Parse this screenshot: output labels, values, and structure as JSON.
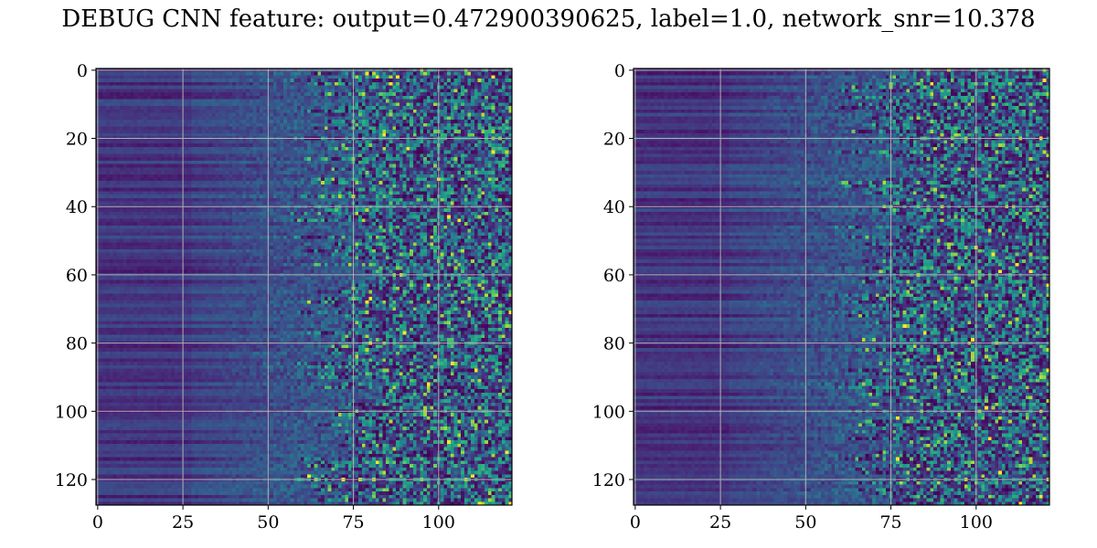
{
  "figure": {
    "title": "DEBUG CNN feature: output=0.472900390625, label=1.0, network_snr=10.378"
  },
  "chart_data": [
    {
      "type": "heatmap",
      "colormap": "viridis",
      "rows": 128,
      "cols": 122,
      "xlim": [
        -0.5,
        121.5
      ],
      "ylim": [
        127.5,
        -0.5
      ],
      "x_ticks": [
        0,
        25,
        50,
        75,
        100
      ],
      "x_tick_labels": [
        "0",
        "25",
        "50",
        "75",
        "100"
      ],
      "y_ticks": [
        0,
        20,
        40,
        60,
        80,
        100,
        120
      ],
      "y_tick_labels": [
        "0",
        "20",
        "40",
        "60",
        "80",
        "100",
        "120"
      ],
      "grid": true,
      "grid_color": "#b0b0b0",
      "noise_onset_col": 70,
      "seed": 7
    },
    {
      "type": "heatmap",
      "colormap": "viridis",
      "rows": 128,
      "cols": 122,
      "xlim": [
        -0.5,
        121.5
      ],
      "ylim": [
        127.5,
        -0.5
      ],
      "x_ticks": [
        0,
        25,
        50,
        75,
        100
      ],
      "x_tick_labels": [
        "0",
        "25",
        "50",
        "75",
        "100"
      ],
      "y_ticks": [
        0,
        20,
        40,
        60,
        80,
        100,
        120
      ],
      "y_tick_labels": [
        "0",
        "20",
        "40",
        "60",
        "80",
        "100",
        "120"
      ],
      "grid": true,
      "grid_color": "#b0b0b0",
      "noise_onset_col": 72,
      "seed": 19
    }
  ]
}
